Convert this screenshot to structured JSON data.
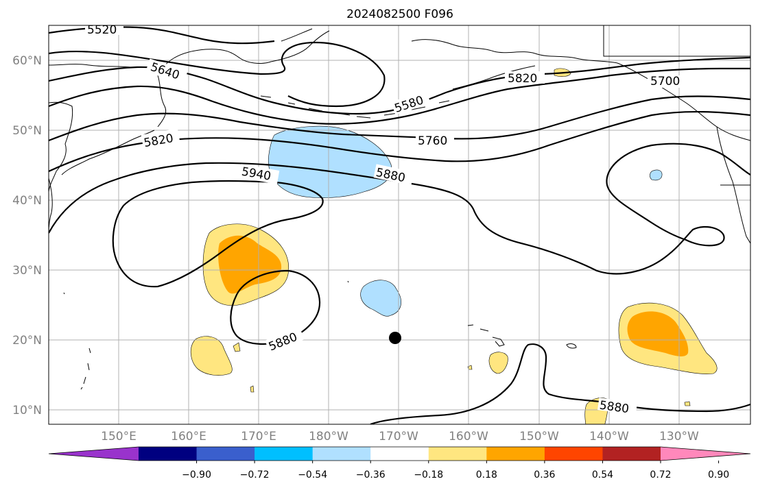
{
  "title": "2024082500 F096",
  "lat_ticks": [
    "60°N",
    "50°N",
    "40°N",
    "30°N",
    "20°N",
    "10°N"
  ],
  "lon_ticks": [
    "150°E",
    "160°E",
    "170°E",
    "180°W",
    "170°W",
    "160°W",
    "150°W",
    "140°W",
    "130°W"
  ],
  "contour_labels": {
    "c5520": "5520",
    "c5640": "5640",
    "c5580": "5580",
    "c5820_ne": "5820",
    "c5700": "5700",
    "c5760": "5760",
    "c5820": "5820",
    "c5940": "5940",
    "c5880_n": "5880",
    "c5880_s": "5880",
    "c5880_se": "5880"
  },
  "colorbar": {
    "ticks": [
      "−0.90",
      "−0.72",
      "−0.54",
      "−0.36",
      "−0.18",
      "0.18",
      "0.36",
      "0.54",
      "0.72",
      "0.90"
    ],
    "colors": [
      "#9933cc",
      "#000080",
      "#3a5fcd",
      "#00bfff",
      "#b0e0ff",
      "#ffffff",
      "#ffe680",
      "#ffa500",
      "#ff4500",
      "#b22222",
      "#ff88bb"
    ]
  },
  "colors": {
    "light_blue": "#b0e0ff",
    "light_yellow": "#ffe680",
    "orange": "#ffa500"
  },
  "marker": "black dot"
}
